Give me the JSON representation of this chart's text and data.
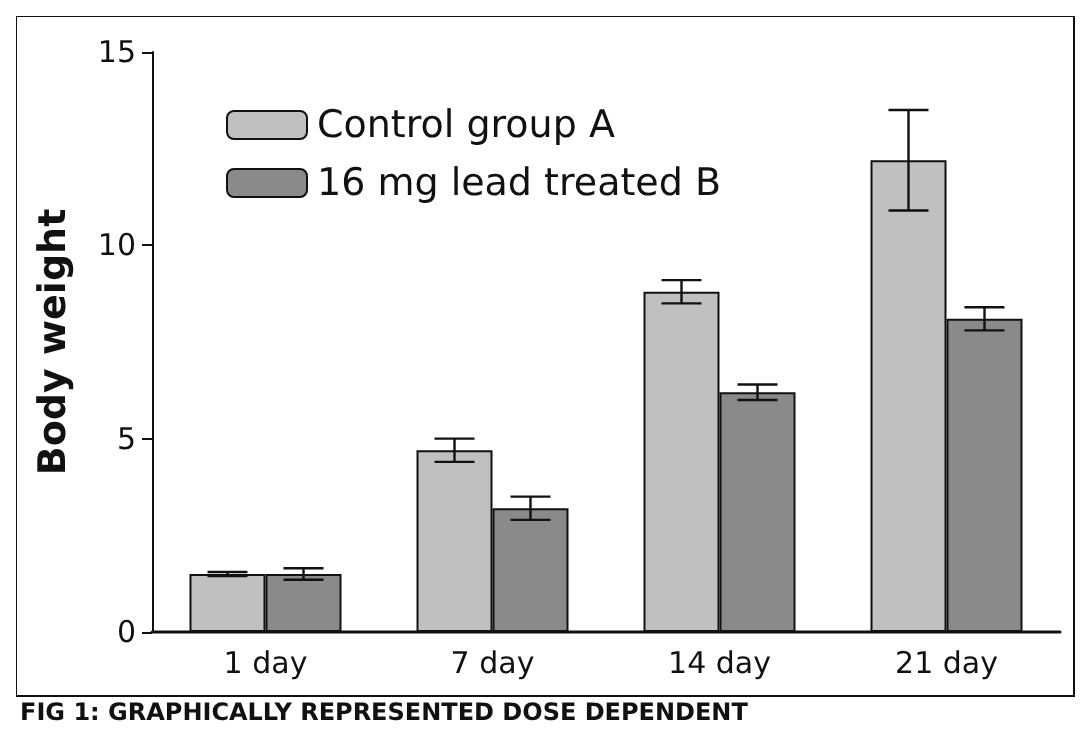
{
  "chart_data": {
    "type": "bar",
    "ylabel": "Body weight",
    "categories": [
      "1 day",
      "7 day",
      "14 day",
      "21 day"
    ],
    "series": [
      {
        "name": "Control group A",
        "color": "#c0c0c0",
        "values": [
          1.5,
          4.7,
          8.8,
          12.2
        ],
        "errors": [
          0.05,
          0.3,
          0.3,
          1.3
        ]
      },
      {
        "name": "16 mg lead treated B",
        "color": "#8a8a8a",
        "values": [
          1.5,
          3.2,
          6.2,
          8.1
        ],
        "errors": [
          0.15,
          0.3,
          0.2,
          0.3
        ]
      }
    ],
    "ylim": [
      0,
      15
    ],
    "yticks": [
      0,
      5,
      10,
      15
    ],
    "grid": false,
    "legend": "top left",
    "annotations": [
      "FIG 1: GRAPHICALLY REPRESENTED DOSE DEPENDENT"
    ]
  }
}
